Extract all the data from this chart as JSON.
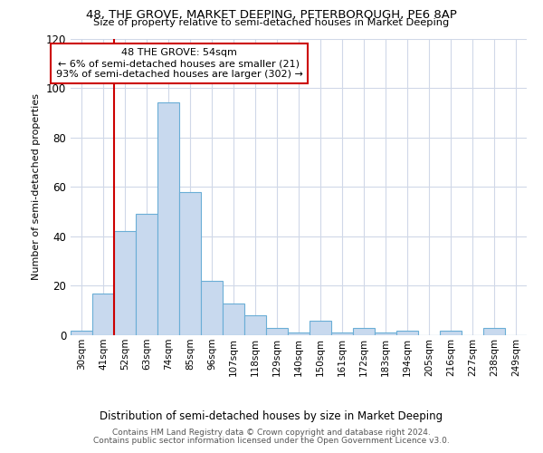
{
  "title": "48, THE GROVE, MARKET DEEPING, PETERBOROUGH, PE6 8AP",
  "subtitle": "Size of property relative to semi-detached houses in Market Deeping",
  "xlabel": "Distribution of semi-detached houses by size in Market Deeping",
  "ylabel": "Number of semi-detached properties",
  "categories": [
    "30sqm",
    "41sqm",
    "52sqm",
    "63sqm",
    "74sqm",
    "85sqm",
    "96sqm",
    "107sqm",
    "118sqm",
    "129sqm",
    "140sqm",
    "150sqm",
    "161sqm",
    "172sqm",
    "183sqm",
    "194sqm",
    "205sqm",
    "216sqm",
    "227sqm",
    "238sqm",
    "249sqm"
  ],
  "values": [
    2,
    17,
    42,
    49,
    94,
    58,
    22,
    13,
    8,
    3,
    1,
    6,
    1,
    3,
    1,
    2,
    0,
    2,
    0,
    3,
    0
  ],
  "bar_color": "#c8d9ee",
  "bar_edge_color": "#6aaed6",
  "ylim": [
    0,
    120
  ],
  "yticks": [
    0,
    20,
    40,
    60,
    80,
    100,
    120
  ],
  "property_label": "48 THE GROVE: 54sqm",
  "pct_smaller": "6% of semi-detached houses are smaller (21)",
  "pct_larger": "93% of semi-detached houses are larger (302)",
  "arrow_left": "←",
  "arrow_right": "→",
  "vline_position": 2.0,
  "vline_color": "#cc0000",
  "annotation_box_color": "#ffffff",
  "annotation_box_edge": "#cc0000",
  "background_color": "#ffffff",
  "grid_color": "#d0d8e8",
  "footer1": "Contains HM Land Registry data © Crown copyright and database right 2024.",
  "footer2": "Contains public sector information licensed under the Open Government Licence v3.0."
}
